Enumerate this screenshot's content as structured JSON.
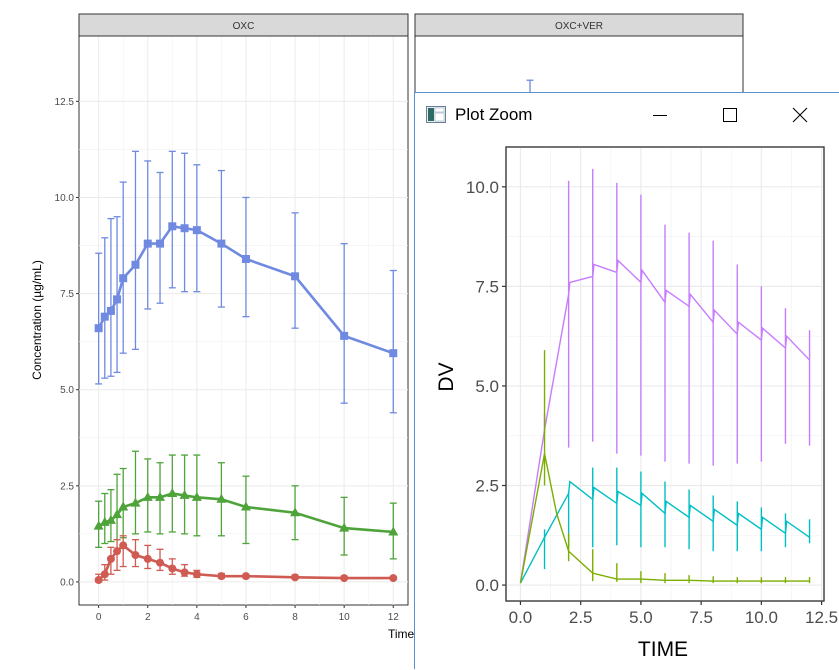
{
  "chart_data": [
    {
      "type": "line",
      "panel": "OXC",
      "strip_labels": [
        "OXC",
        "OXC+VER"
      ],
      "xlabel": "Time",
      "ylabel": "Concentration (µg/mL)",
      "xlim": [
        -0.8,
        12.6
      ],
      "ylim": [
        -0.6,
        14.2
      ],
      "xticks": [
        0,
        2,
        4,
        6,
        8,
        10,
        12
      ],
      "yticks": [
        0.0,
        2.5,
        5.0,
        7.5,
        10.0,
        12.5
      ],
      "ytick_labels": [
        "0.0",
        "2.5",
        "5.0",
        "7.5",
        "10.0",
        "12.5"
      ],
      "grid": true,
      "series": [
        {
          "color": "#6f8ae0",
          "marker": "square",
          "x": [
            0,
            0.25,
            0.5,
            0.75,
            1,
            1.5,
            2,
            2.5,
            3,
            3.5,
            4,
            5,
            6,
            8,
            10,
            12
          ],
          "y": [
            6.6,
            6.9,
            7.05,
            7.35,
            7.9,
            8.25,
            8.8,
            8.8,
            9.25,
            9.2,
            9.15,
            8.8,
            8.4,
            7.95,
            6.4,
            5.95
          ],
          "lower": [
            5.15,
            5.3,
            5.35,
            5.45,
            5.95,
            6.05,
            7.1,
            7.25,
            7.65,
            7.55,
            7.55,
            7.15,
            6.9,
            6.6,
            4.65,
            4.4
          ],
          "upper": [
            8.55,
            8.95,
            9.45,
            9.5,
            10.4,
            11.2,
            10.95,
            10.65,
            11.2,
            11.15,
            10.85,
            10.7,
            10.0,
            9.6,
            8.8,
            8.1
          ]
        },
        {
          "color": "#4ea33a",
          "marker": "triangle",
          "x": [
            0,
            0.25,
            0.5,
            0.75,
            1,
            1.5,
            2,
            2.5,
            3,
            3.5,
            4,
            5,
            6,
            8,
            10,
            12
          ],
          "y": [
            1.45,
            1.55,
            1.6,
            1.75,
            1.95,
            2.05,
            2.2,
            2.2,
            2.3,
            2.25,
            2.2,
            2.15,
            1.95,
            1.8,
            1.4,
            1.3
          ],
          "lower": [
            0.9,
            1.0,
            1.05,
            1.1,
            1.15,
            1.25,
            1.3,
            1.25,
            1.3,
            1.25,
            1.2,
            1.2,
            1.0,
            1.1,
            0.7,
            0.6
          ],
          "upper": [
            2.1,
            2.3,
            2.4,
            2.8,
            2.95,
            3.4,
            3.2,
            3.1,
            3.3,
            3.3,
            3.3,
            3.1,
            2.75,
            2.5,
            2.2,
            2.05
          ]
        },
        {
          "color": "#cf5b52",
          "marker": "circle",
          "x": [
            0,
            0.25,
            0.5,
            0.75,
            1,
            1.5,
            2,
            2.5,
            3,
            3.5,
            4,
            5,
            6,
            8,
            10,
            12
          ],
          "y": [
            0.05,
            0.2,
            0.6,
            0.8,
            0.95,
            0.7,
            0.6,
            0.5,
            0.35,
            0.25,
            0.2,
            0.15,
            0.15,
            0.12,
            0.1,
            0.1
          ],
          "lower": [
            0.0,
            0.05,
            0.2,
            0.3,
            0.4,
            0.4,
            0.35,
            0.3,
            0.2,
            0.15,
            0.12,
            0.1,
            0.1,
            0.08,
            0.07,
            0.07
          ],
          "upper": [
            0.2,
            0.45,
            0.9,
            1.1,
            1.2,
            1.1,
            0.95,
            0.85,
            0.6,
            0.45,
            0.3,
            0.22,
            0.2,
            0.18,
            0.15,
            0.13
          ]
        }
      ],
      "partial_panel_errorbar": {
        "x": 0.4,
        "upper": 13.05,
        "color": "#6f8ae0"
      }
    },
    {
      "type": "line",
      "window_title": "Plot Zoom",
      "xlabel": "TIME",
      "ylabel": "DV",
      "xlim": [
        -0.6,
        12.6
      ],
      "ylim": [
        -0.4,
        11.0
      ],
      "xticks": [
        0,
        2.5,
        5,
        7.5,
        10,
        12.5
      ],
      "xtick_labels": [
        "0.0",
        "2.5",
        "5.0",
        "7.5",
        "10.0",
        "12.5"
      ],
      "yticks": [
        0,
        2.5,
        5,
        7.5,
        10
      ],
      "ytick_labels": [
        "0.0",
        "2.5",
        "5.0",
        "7.5",
        "10.0"
      ],
      "grid": true,
      "series": [
        {
          "color": "#c77cff",
          "x": [
            0,
            1,
            2,
            3,
            4,
            5,
            6,
            7,
            8,
            9,
            10,
            11,
            12
          ],
          "y": [
            0.05,
            3.9,
            7.3,
            7.75,
            7.85,
            7.6,
            7.1,
            7.0,
            6.6,
            6.3,
            6.15,
            5.95,
            5.65
          ],
          "sawtooth": {
            "start": 2,
            "amp_rise": 0.3,
            "amp_drop": 0.25
          },
          "errorbars": [
            {
              "x": 1,
              "low": 3.8,
              "high": 4.3
            },
            {
              "x": 2,
              "low": 3.45,
              "high": 10.15
            },
            {
              "x": 3,
              "low": 3.6,
              "high": 10.45
            },
            {
              "x": 4,
              "low": 3.3,
              "high": 10.1
            },
            {
              "x": 5,
              "low": 3.25,
              "high": 9.8
            },
            {
              "x": 6,
              "low": 3.1,
              "high": 9.05
            },
            {
              "x": 7,
              "low": 3.05,
              "high": 8.85
            },
            {
              "x": 8,
              "low": 3.0,
              "high": 8.65
            },
            {
              "x": 9,
              "low": 3.05,
              "high": 8.05
            },
            {
              "x": 10,
              "low": 3.1,
              "high": 7.5
            },
            {
              "x": 11,
              "low": 3.55,
              "high": 6.95
            },
            {
              "x": 12,
              "low": 3.5,
              "high": 6.4
            }
          ]
        },
        {
          "color": "#00bfc4",
          "x": [
            0,
            1,
            2,
            3,
            4,
            5,
            6,
            7,
            8,
            9,
            10,
            11,
            12
          ],
          "y": [
            0.05,
            1.2,
            2.3,
            2.15,
            2.05,
            2.0,
            1.8,
            1.7,
            1.6,
            1.5,
            1.4,
            1.3,
            1.2
          ],
          "sawtooth": {
            "start": 2,
            "amp_rise": 0.3,
            "amp_drop": 0.6
          },
          "errorbars": [
            {
              "x": 1,
              "low": 0.4,
              "high": 1.4
            },
            {
              "x": 2,
              "low": 0.95,
              "high": 2.35
            },
            {
              "x": 3,
              "low": 0.95,
              "high": 2.95
            },
            {
              "x": 4,
              "low": 1.0,
              "high": 2.95
            },
            {
              "x": 5,
              "low": 0.95,
              "high": 2.85
            },
            {
              "x": 6,
              "low": 0.95,
              "high": 2.6
            },
            {
              "x": 7,
              "low": 0.9,
              "high": 2.4
            },
            {
              "x": 8,
              "low": 0.85,
              "high": 2.25
            },
            {
              "x": 9,
              "low": 0.85,
              "high": 2.1
            },
            {
              "x": 10,
              "low": 0.85,
              "high": 1.95
            },
            {
              "x": 11,
              "low": 0.95,
              "high": 1.8
            },
            {
              "x": 12,
              "low": 1.05,
              "high": 1.65
            }
          ]
        },
        {
          "color": "#7cae00",
          "x": [
            0,
            1,
            1.5,
            2,
            3,
            4,
            5,
            6,
            7,
            8,
            9,
            10,
            11,
            12
          ],
          "y": [
            0.05,
            3.3,
            1.8,
            0.85,
            0.3,
            0.15,
            0.15,
            0.12,
            0.12,
            0.1,
            0.1,
            0.1,
            0.1,
            0.1
          ],
          "errorbars": [
            {
              "x": 1,
              "low": 2.5,
              "high": 5.9
            },
            {
              "x": 2,
              "low": 0.6,
              "high": 1.3
            },
            {
              "x": 3,
              "low": 0.1,
              "high": 0.9
            },
            {
              "x": 4,
              "low": 0.08,
              "high": 0.55
            },
            {
              "x": 5,
              "low": 0.05,
              "high": 0.35
            },
            {
              "x": 6,
              "low": 0.05,
              "high": 0.3
            },
            {
              "x": 7,
              "low": 0.05,
              "high": 0.25
            },
            {
              "x": 8,
              "low": 0.05,
              "high": 0.22
            },
            {
              "x": 9,
              "low": 0.05,
              "high": 0.2
            },
            {
              "x": 10,
              "low": 0.05,
              "high": 0.2
            },
            {
              "x": 11,
              "low": 0.05,
              "high": 0.2
            },
            {
              "x": 12,
              "low": 0.05,
              "high": 0.2
            }
          ]
        }
      ]
    }
  ],
  "zoom_window": {
    "title": "Plot Zoom",
    "icon": "r-plot-icon",
    "buttons": [
      {
        "name": "minimize-button",
        "icon": "minimize-icon"
      },
      {
        "name": "maximize-button",
        "icon": "maximize-icon"
      },
      {
        "name": "close-button",
        "icon": "close-icon"
      }
    ]
  }
}
